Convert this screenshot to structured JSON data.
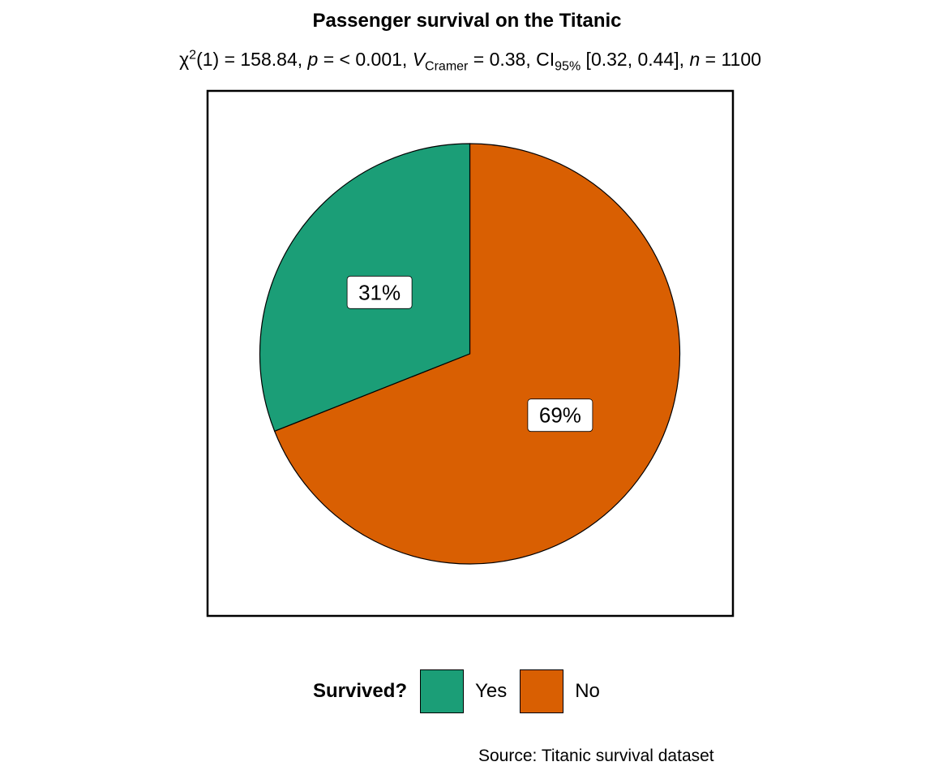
{
  "chart_data": {
    "type": "pie",
    "title": "Passenger survival on the Titanic",
    "subtitle": {
      "chi": "χ",
      "chi_sup": "2",
      "df": "(1) = 158.84, ",
      "p_sym": "p",
      "p_text": " = < 0.001, ",
      "v_sym": "V",
      "v_sub": "Cramer",
      "v_text": " = 0.38, CI",
      "ci_sub": "95%",
      "ci_text": " [0.32, 0.44], ",
      "n_sym": "n",
      "n_text": " = 1100"
    },
    "legend_title": "Survived?",
    "slices": [
      {
        "name": "Yes",
        "value": 31,
        "label": "31%",
        "color": "#1b9e77"
      },
      {
        "name": "No",
        "value": 69,
        "label": "69%",
        "color": "#d95f02"
      }
    ],
    "legend_position": "bottom",
    "caption": "Source: Titanic survival dataset"
  }
}
